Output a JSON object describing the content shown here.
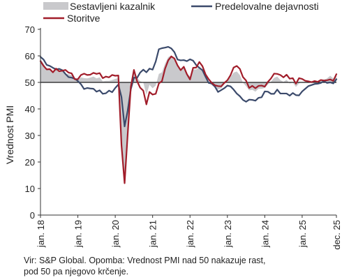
{
  "chart_data": {
    "type": "line",
    "title": "",
    "ylabel": "Vrednost PMI",
    "xlabel": "",
    "ylim": [
      0,
      70
    ],
    "yticks": [
      0,
      10,
      20,
      30,
      40,
      50,
      60,
      70
    ],
    "reference_line": 50,
    "grid": false,
    "legend_position": "top",
    "x_tick_labels": [
      "jan. 18",
      "jan. 19",
      "jan. 20",
      "jan. 21",
      "jan. 22",
      "jan. 23",
      "jan. 24",
      "jan. 25",
      "dec. 25"
    ],
    "x_tick_positions": [
      "2018-01",
      "2019-01",
      "2020-01",
      "2021-01",
      "2022-01",
      "2023-01",
      "2024-01",
      "2025-01",
      "2025-12"
    ],
    "x_start": "2018-01",
    "x": [
      "2018-01",
      "2018-02",
      "2018-03",
      "2018-04",
      "2018-05",
      "2018-06",
      "2018-07",
      "2018-08",
      "2018-09",
      "2018-10",
      "2018-11",
      "2018-12",
      "2019-01",
      "2019-02",
      "2019-03",
      "2019-04",
      "2019-05",
      "2019-06",
      "2019-07",
      "2019-08",
      "2019-09",
      "2019-10",
      "2019-11",
      "2019-12",
      "2020-01",
      "2020-02",
      "2020-03",
      "2020-04",
      "2020-05",
      "2020-06",
      "2020-07",
      "2020-08",
      "2020-09",
      "2020-10",
      "2020-11",
      "2020-12",
      "2021-01",
      "2021-02",
      "2021-03",
      "2021-04",
      "2021-05",
      "2021-06",
      "2021-07",
      "2021-08",
      "2021-09",
      "2021-10",
      "2021-11",
      "2021-12",
      "2022-01",
      "2022-02",
      "2022-03",
      "2022-04",
      "2022-05",
      "2022-06",
      "2022-07",
      "2022-08",
      "2022-09",
      "2022-10",
      "2022-11",
      "2022-12",
      "2023-01",
      "2023-02",
      "2023-03",
      "2023-04",
      "2023-05",
      "2023-06",
      "2023-07",
      "2023-08",
      "2023-09",
      "2023-10",
      "2023-11",
      "2023-12",
      "2024-01",
      "2024-02",
      "2024-03",
      "2024-04",
      "2024-05",
      "2024-06",
      "2024-07",
      "2024-08",
      "2024-09",
      "2024-10",
      "2024-11",
      "2024-12",
      "2025-01",
      "2025-02",
      "2025-03",
      "2025-04",
      "2025-05",
      "2025-06",
      "2025-07",
      "2025-08",
      "2025-09",
      "2025-10",
      "2025-11",
      "2025-12"
    ],
    "series": [
      {
        "name": "Sestavljeni kazalnik",
        "style": "area",
        "color": "#c9c9cc",
        "values": [
          58.8,
          57.1,
          55.2,
          55.1,
          54.1,
          54.9,
          54.3,
          54.5,
          53.2,
          53.1,
          52.7,
          51.1,
          51.0,
          51.9,
          51.6,
          51.5,
          51.8,
          52.2,
          51.5,
          51.9,
          50.4,
          50.6,
          50.6,
          50.9,
          51.3,
          51.6,
          29.7,
          13.6,
          31.9,
          48.5,
          54.9,
          51.9,
          50.4,
          50.0,
          45.3,
          49.1,
          47.8,
          48.8,
          53.2,
          53.8,
          57.1,
          59.5,
          60.2,
          59.0,
          56.2,
          54.2,
          55.4,
          53.3,
          52.3,
          54.9,
          54.9,
          55.8,
          54.8,
          52.0,
          49.9,
          48.9,
          48.1,
          47.3,
          47.8,
          49.3,
          50.3,
          52.0,
          53.7,
          54.1,
          52.8,
          49.9,
          48.6,
          47.0,
          47.2,
          46.5,
          47.6,
          47.6,
          47.9,
          49.2,
          50.3,
          51.7,
          52.2,
          50.9,
          50.2,
          51.0,
          49.6,
          50.0,
          48.3,
          49.6,
          50.2,
          50.2,
          50.4,
          50.1,
          50.4,
          50.2,
          50.9,
          51.0,
          51.5,
          52.5,
          51.5,
          52.8
        ]
      },
      {
        "name": "Predelovalne dejavnosti",
        "style": "line",
        "color": "#3b4a6b",
        "values": [
          59.6,
          58.6,
          56.6,
          56.2,
          55.5,
          54.9,
          55.1,
          54.6,
          53.2,
          52.0,
          51.8,
          51.4,
          50.5,
          49.3,
          47.5,
          47.9,
          47.7,
          47.6,
          46.5,
          47.0,
          45.7,
          45.9,
          46.9,
          46.3,
          47.9,
          49.2,
          44.5,
          33.4,
          39.4,
          47.4,
          51.8,
          51.7,
          53.7,
          54.8,
          53.8,
          55.2,
          54.8,
          57.9,
          62.5,
          62.9,
          63.1,
          63.4,
          62.8,
          61.4,
          58.6,
          58.3,
          58.4,
          58.0,
          58.7,
          58.2,
          56.5,
          55.5,
          54.6,
          52.1,
          49.8,
          49.6,
          48.4,
          46.4,
          47.1,
          47.8,
          48.8,
          48.5,
          47.3,
          45.8,
          44.8,
          43.4,
          42.7,
          43.5,
          43.4,
          43.1,
          44.2,
          44.4,
          46.6,
          46.5,
          45.7,
          45.7,
          47.3,
          45.8,
          45.8,
          45.8,
          45.0,
          46.0,
          45.2,
          45.1,
          46.6,
          47.6,
          48.6,
          49.0,
          49.4,
          49.5,
          49.8,
          50.5,
          49.8,
          50.0,
          49.6,
          51.2
        ]
      },
      {
        "name": "Storitve",
        "style": "line",
        "color": "#a11d2a",
        "values": [
          58.0,
          56.2,
          54.9,
          55.0,
          53.8,
          55.2,
          54.2,
          54.4,
          54.7,
          53.7,
          53.4,
          51.2,
          51.2,
          52.8,
          53.3,
          52.8,
          52.9,
          53.6,
          53.2,
          53.5,
          51.6,
          52.2,
          51.9,
          52.8,
          52.5,
          52.6,
          26.4,
          12.0,
          30.5,
          48.3,
          54.7,
          50.5,
          48.0,
          46.9,
          41.7,
          46.4,
          45.4,
          45.7,
          49.6,
          50.5,
          55.2,
          58.3,
          59.8,
          59.0,
          56.4,
          54.6,
          55.9,
          53.1,
          51.1,
          55.5,
          55.6,
          57.7,
          56.1,
          53.0,
          51.2,
          49.8,
          48.9,
          48.6,
          48.5,
          49.8,
          50.8,
          52.7,
          55.6,
          56.2,
          55.1,
          52.0,
          50.7,
          47.9,
          48.7,
          47.8,
          48.7,
          48.8,
          48.4,
          50.2,
          51.5,
          53.3,
          53.2,
          52.8,
          51.9,
          52.9,
          51.4,
          51.6,
          49.5,
          51.6,
          51.3,
          50.6,
          50.4,
          50.1,
          50.5,
          50.2,
          50.9,
          50.7,
          50.8,
          51.1,
          50.6,
          53.1
        ]
      }
    ]
  },
  "note": {
    "line1": "Vir: S&P Global. Opomba: Vrednost PMI nad 50 nakazuje rast,",
    "line2": "pod 50 pa njegovo krčenje."
  }
}
